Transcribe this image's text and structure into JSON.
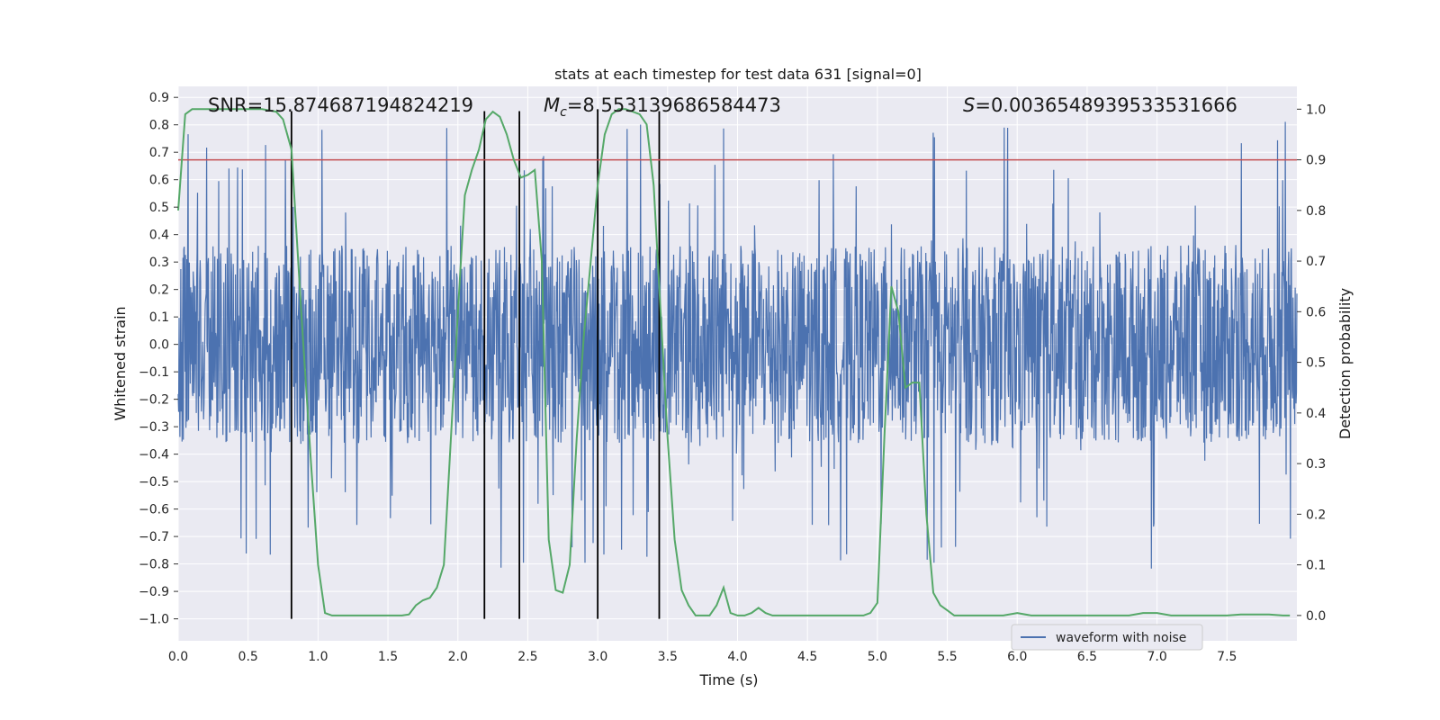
{
  "chart_data": {
    "type": "line",
    "title": "stats at each timestep for test data 631 [signal=0]",
    "xlabel": "Time (s)",
    "ylabel_left": "Whitened strain",
    "ylabel_right": "Detection probability",
    "xlim": [
      0.0,
      8.0
    ],
    "ylim_left": [
      -1.08,
      0.94
    ],
    "ylim_right": [
      -0.05,
      1.045
    ],
    "x_ticks": [
      "0.0",
      "0.5",
      "1.0",
      "1.5",
      "2.0",
      "2.5",
      "3.0",
      "3.5",
      "4.0",
      "4.5",
      "5.0",
      "5.5",
      "6.0",
      "6.5",
      "7.0",
      "7.5"
    ],
    "y_left_ticks": [
      "0.9",
      "0.8",
      "0.7",
      "0.6",
      "0.5",
      "0.4",
      "0.3",
      "0.2",
      "0.1",
      "0.0",
      "-0.1",
      "-0.2",
      "-0.3",
      "-0.4",
      "-0.5",
      "-0.6",
      "-0.7",
      "-0.8",
      "-0.9",
      "-1.0"
    ],
    "y_right_ticks": [
      "1.0",
      "0.9",
      "0.8",
      "0.7",
      "0.6",
      "0.5",
      "0.4",
      "0.3",
      "0.2",
      "0.1",
      "0.0"
    ],
    "grid": true,
    "legend": {
      "position": "bottom-right",
      "entries": [
        "waveform with noise"
      ]
    },
    "annotations": {
      "snr": "SNR=15.874687194824219",
      "mc_symbol": "M",
      "mc_sub": "c",
      "mc_value": "=8.553139686584473",
      "s_symbol": "S",
      "s_value": "=0.0036548939533531666"
    },
    "threshold": {
      "value": 0.9,
      "axis": "right",
      "color": "#c44e52"
    },
    "vlines": [
      0.81,
      2.19,
      2.44,
      3.0,
      3.44
    ],
    "vline_range": [
      -1.0,
      0.85
    ],
    "waveform": {
      "name": "waveform with noise",
      "color": "#4c72b0",
      "samples": 2600,
      "typical_amplitude": 0.36,
      "peak_amplitude": 0.82
    },
    "probability": {
      "color": "#55a868",
      "x": [
        0.0,
        0.05,
        0.1,
        0.2,
        0.3,
        0.4,
        0.5,
        0.6,
        0.7,
        0.75,
        0.81,
        0.88,
        0.95,
        1.0,
        1.05,
        1.1,
        1.2,
        1.3,
        1.4,
        1.5,
        1.6,
        1.65,
        1.7,
        1.75,
        1.8,
        1.85,
        1.9,
        1.95,
        2.0,
        2.05,
        2.1,
        2.15,
        2.2,
        2.25,
        2.3,
        2.35,
        2.4,
        2.45,
        2.5,
        2.55,
        2.6,
        2.65,
        2.7,
        2.75,
        2.8,
        2.85,
        2.9,
        2.95,
        3.0,
        3.05,
        3.1,
        3.15,
        3.2,
        3.25,
        3.3,
        3.35,
        3.4,
        3.45,
        3.5,
        3.55,
        3.6,
        3.65,
        3.7,
        3.75,
        3.8,
        3.85,
        3.9,
        3.95,
        4.0,
        4.05,
        4.1,
        4.15,
        4.2,
        4.25,
        4.3,
        4.35,
        4.4,
        4.5,
        4.6,
        4.7,
        4.8,
        4.9,
        4.95,
        5.0,
        5.05,
        5.1,
        5.15,
        5.2,
        5.25,
        5.3,
        5.35,
        5.4,
        5.45,
        5.5,
        5.55,
        5.6,
        5.65,
        5.7,
        5.8,
        5.9,
        6.0,
        6.1,
        6.2,
        6.3,
        6.4,
        6.5,
        6.6,
        6.7,
        6.8,
        6.9,
        7.0,
        7.1,
        7.2,
        7.3,
        7.4,
        7.5,
        7.6,
        7.7,
        7.8,
        7.9,
        7.95
      ],
      "y": [
        0.8,
        0.99,
        1.0,
        1.0,
        1.0,
        1.0,
        1.0,
        1.0,
        0.995,
        0.98,
        0.92,
        0.6,
        0.3,
        0.1,
        0.005,
        0.0,
        0.0,
        0.0,
        0.0,
        0.0,
        0.0,
        0.002,
        0.02,
        0.03,
        0.035,
        0.055,
        0.1,
        0.35,
        0.6,
        0.83,
        0.88,
        0.92,
        0.98,
        0.995,
        0.985,
        0.95,
        0.9,
        0.865,
        0.87,
        0.88,
        0.7,
        0.15,
        0.05,
        0.045,
        0.1,
        0.35,
        0.55,
        0.7,
        0.85,
        0.95,
        0.99,
        1.0,
        1.0,
        0.995,
        0.99,
        0.97,
        0.85,
        0.6,
        0.35,
        0.15,
        0.05,
        0.02,
        0.0,
        0.0,
        0.0,
        0.02,
        0.055,
        0.005,
        0.0,
        0.0,
        0.005,
        0.015,
        0.005,
        0.0,
        0.0,
        0.0,
        0.0,
        0.0,
        0.0,
        0.0,
        0.0,
        0.0,
        0.005,
        0.025,
        0.35,
        0.65,
        0.6,
        0.45,
        0.46,
        0.46,
        0.2,
        0.045,
        0.02,
        0.01,
        0.0,
        0.0,
        0.0,
        0.0,
        0.0,
        0.0,
        0.005,
        0.0,
        0.0,
        0.0,
        0.0,
        0.0,
        0.0,
        0.0,
        0.0,
        0.005,
        0.005,
        0.0,
        0.0,
        0.0,
        0.0,
        0.0,
        0.002,
        0.002,
        0.002,
        0.0,
        0.0
      ]
    }
  }
}
